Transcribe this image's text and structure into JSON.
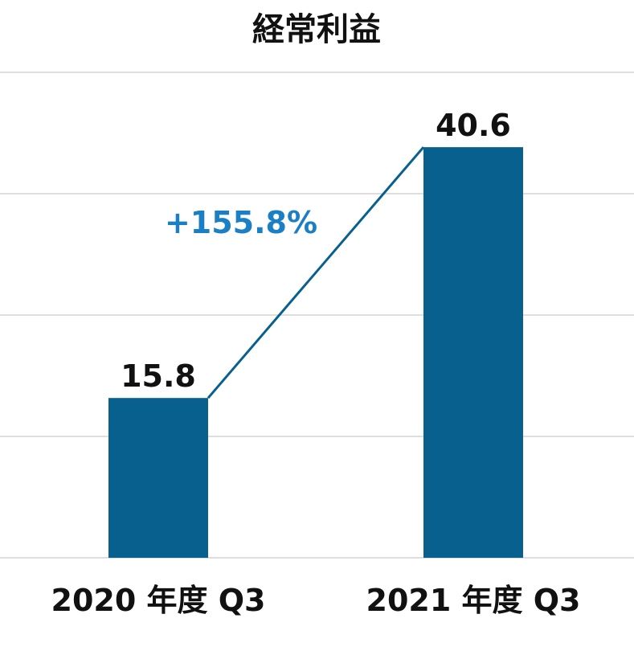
{
  "chart_data": {
    "type": "bar",
    "title": "経常利益",
    "categories": [
      "2020 年度 Q3",
      "2021 年度 Q3"
    ],
    "values": [
      15.8,
      40.6
    ],
    "ylim": [
      0,
      48
    ],
    "grid": true,
    "growth_annotation": "+155.8%",
    "colors": {
      "bar": "#08608f",
      "connector": "#08608f",
      "growth_text": "#1a7fc4",
      "grid": "#bdbdbd"
    }
  }
}
